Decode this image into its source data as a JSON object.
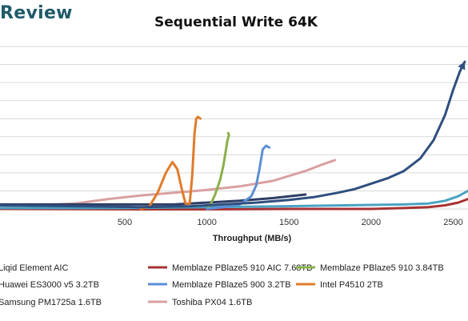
{
  "brand": {
    "text": "Review"
  },
  "chart_data": {
    "type": "line",
    "title": "Sequential Write 64K",
    "xlabel": "Throughput (MB/s)",
    "ylabel": "",
    "xlim": [
      -260,
      2590
    ],
    "ylim": [
      0,
      9
    ],
    "x_ticks": [
      500,
      1000,
      1500,
      2000,
      2500
    ],
    "grid": true,
    "legend_position": "bottom",
    "series": [
      {
        "name": "Liqid Element AIC",
        "color": "#2f4f7f",
        "points": [
          [
            -260,
            0.2
          ],
          [
            200,
            0.15
          ],
          [
            600,
            0.1
          ],
          [
            900,
            0.15
          ],
          [
            1100,
            0.25
          ],
          [
            1300,
            0.35
          ],
          [
            1500,
            0.5
          ],
          [
            1650,
            0.65
          ],
          [
            1800,
            0.9
          ],
          [
            1900,
            1.1
          ],
          [
            2000,
            1.4
          ],
          [
            2100,
            1.7
          ],
          [
            2200,
            2.1
          ],
          [
            2300,
            2.8
          ],
          [
            2380,
            3.8
          ],
          [
            2450,
            5.2
          ],
          [
            2500,
            6.6
          ],
          [
            2540,
            7.6
          ],
          [
            2570,
            8.15
          ]
        ]
      },
      {
        "name": "Memblaze PBlaze5 910 AIC 7.68TB",
        "color": "#a83232",
        "points": [
          [
            -260,
            0.0
          ],
          [
            500,
            -0.02
          ],
          [
            1000,
            -0.02
          ],
          [
            1500,
            0.0
          ],
          [
            2000,
            0.0
          ],
          [
            2200,
            0.05
          ],
          [
            2350,
            0.1
          ],
          [
            2450,
            0.2
          ],
          [
            2530,
            0.35
          ],
          [
            2590,
            0.55
          ]
        ]
      },
      {
        "name": "Memblaze PBlaze5 910 3.84TB",
        "color": "#8ab04a",
        "points": [
          [
            1000,
            0.0
          ],
          [
            1020,
            0.2
          ],
          [
            1050,
            0.8
          ],
          [
            1080,
            1.6
          ],
          [
            1100,
            2.4
          ],
          [
            1115,
            3.2
          ],
          [
            1125,
            3.8
          ],
          [
            1135,
            4.1
          ],
          [
            1130,
            4.2
          ]
        ]
      },
      {
        "name": "Huawei ES3000 v5 3.2TB",
        "color": "#4aa3c2",
        "points": [
          [
            -260,
            0.05
          ],
          [
            500,
            0.05
          ],
          [
            1000,
            0.1
          ],
          [
            1500,
            0.15
          ],
          [
            2000,
            0.22
          ],
          [
            2200,
            0.25
          ],
          [
            2350,
            0.3
          ],
          [
            2450,
            0.45
          ],
          [
            2530,
            0.7
          ],
          [
            2590,
            1.0
          ]
        ]
      },
      {
        "name": "Memblaze PBlaze5 900 3.2TB",
        "color": "#5b8fd6",
        "points": [
          [
            1000,
            0.0
          ],
          [
            1100,
            0.1
          ],
          [
            1200,
            0.25
          ],
          [
            1270,
            0.7
          ],
          [
            1300,
            1.3
          ],
          [
            1320,
            2.2
          ],
          [
            1340,
            3.3
          ],
          [
            1360,
            3.5
          ],
          [
            1380,
            3.4
          ]
        ]
      },
      {
        "name": "Intel P4510 2TB",
        "color": "#e07b2a",
        "points": [
          [
            600,
            0.0
          ],
          [
            650,
            0.15
          ],
          [
            700,
            0.9
          ],
          [
            750,
            2.0
          ],
          [
            790,
            2.6
          ],
          [
            820,
            2.2
          ],
          [
            850,
            1.0
          ],
          [
            870,
            0.3
          ],
          [
            895,
            0.3
          ],
          [
            910,
            1.8
          ],
          [
            925,
            4.2
          ],
          [
            935,
            5.0
          ],
          [
            945,
            5.1
          ],
          [
            960,
            5.0
          ]
        ]
      },
      {
        "name": "Samsung PM1725a 1.6TB",
        "color": "#2d3e66",
        "points": [
          [
            -260,
            0.25
          ],
          [
            200,
            0.25
          ],
          [
            500,
            0.25
          ],
          [
            800,
            0.25
          ],
          [
            900,
            0.3
          ],
          [
            1000,
            0.35
          ],
          [
            1200,
            0.45
          ],
          [
            1400,
            0.6
          ],
          [
            1600,
            0.8
          ]
        ]
      },
      {
        "name": "Toshiba PX04 1.6TB",
        "color": "#d9a0a0",
        "points": [
          [
            -260,
            0.1
          ],
          [
            200,
            0.3
          ],
          [
            400,
            0.55
          ],
          [
            600,
            0.75
          ],
          [
            800,
            0.9
          ],
          [
            1000,
            1.05
          ],
          [
            1200,
            1.25
          ],
          [
            1400,
            1.55
          ],
          [
            1600,
            2.1
          ],
          [
            1700,
            2.45
          ],
          [
            1780,
            2.7
          ]
        ]
      }
    ]
  }
}
